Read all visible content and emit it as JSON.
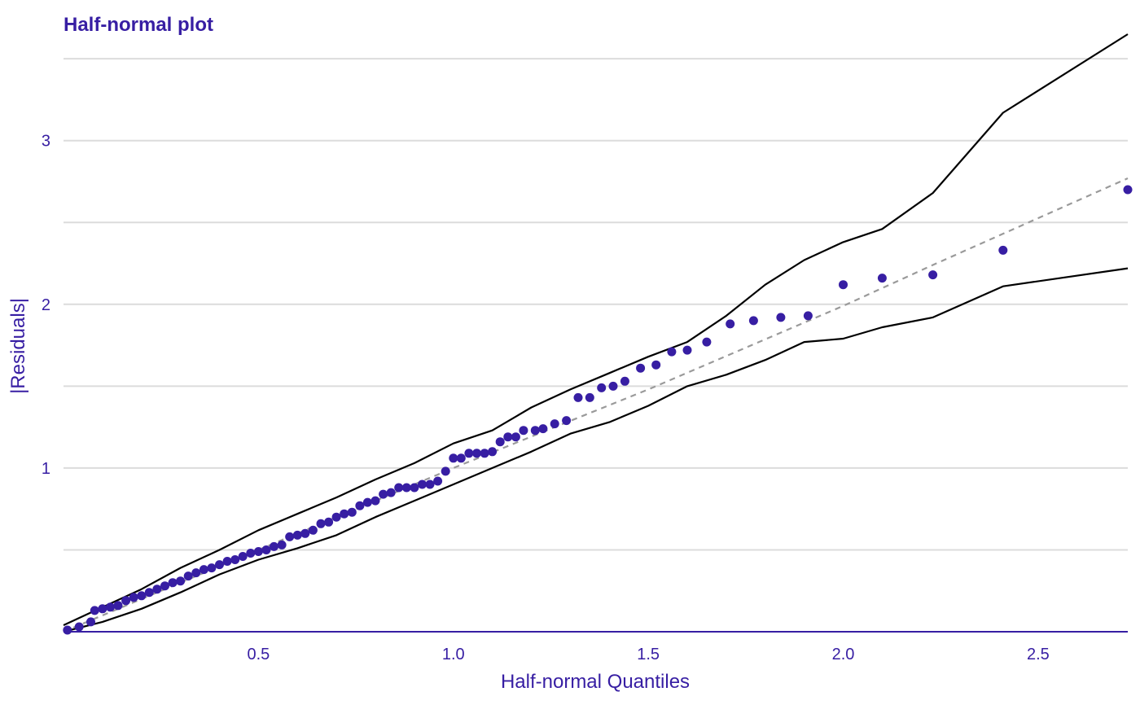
{
  "chart_data": {
    "type": "scatter",
    "title": "Half-normal plot",
    "xlabel": "Half-normal Quantiles",
    "ylabel": "|Residuals|",
    "xlim": [
      0.0,
      2.73
    ],
    "ylim": [
      0.0,
      3.65
    ],
    "x_ticks": [
      0.5,
      1.0,
      1.5,
      2.0,
      2.5
    ],
    "x_tick_labels": [
      "0.5",
      "1.0",
      "1.5",
      "2.0",
      "2.5"
    ],
    "y_ticks": [
      1,
      2,
      3
    ],
    "y_tick_labels": [
      "1",
      "2",
      "3"
    ],
    "y_gridlines": [
      0.5,
      1,
      1.5,
      2,
      2.5,
      3,
      3.5
    ],
    "grid": "horizontal",
    "colors": {
      "points": "#371ea3",
      "envelope": "#000000",
      "reference": "#9a9a9a",
      "text": "#371ea3",
      "grid": "#dcdcdc"
    },
    "points": [
      [
        0.01,
        0.01
      ],
      [
        0.04,
        0.03
      ],
      [
        0.07,
        0.06
      ],
      [
        0.08,
        0.13
      ],
      [
        0.1,
        0.14
      ],
      [
        0.12,
        0.15
      ],
      [
        0.14,
        0.16
      ],
      [
        0.16,
        0.19
      ],
      [
        0.18,
        0.21
      ],
      [
        0.2,
        0.22
      ],
      [
        0.22,
        0.24
      ],
      [
        0.24,
        0.26
      ],
      [
        0.26,
        0.28
      ],
      [
        0.28,
        0.3
      ],
      [
        0.3,
        0.31
      ],
      [
        0.32,
        0.34
      ],
      [
        0.34,
        0.36
      ],
      [
        0.36,
        0.38
      ],
      [
        0.38,
        0.39
      ],
      [
        0.4,
        0.41
      ],
      [
        0.42,
        0.43
      ],
      [
        0.44,
        0.44
      ],
      [
        0.46,
        0.46
      ],
      [
        0.48,
        0.48
      ],
      [
        0.5,
        0.49
      ],
      [
        0.52,
        0.5
      ],
      [
        0.54,
        0.52
      ],
      [
        0.56,
        0.53
      ],
      [
        0.58,
        0.58
      ],
      [
        0.6,
        0.59
      ],
      [
        0.62,
        0.6
      ],
      [
        0.64,
        0.62
      ],
      [
        0.66,
        0.66
      ],
      [
        0.68,
        0.67
      ],
      [
        0.7,
        0.7
      ],
      [
        0.72,
        0.72
      ],
      [
        0.74,
        0.73
      ],
      [
        0.76,
        0.77
      ],
      [
        0.78,
        0.79
      ],
      [
        0.8,
        0.8
      ],
      [
        0.82,
        0.84
      ],
      [
        0.84,
        0.85
      ],
      [
        0.86,
        0.88
      ],
      [
        0.88,
        0.88
      ],
      [
        0.9,
        0.88
      ],
      [
        0.92,
        0.9
      ],
      [
        0.94,
        0.9
      ],
      [
        0.96,
        0.92
      ],
      [
        0.98,
        0.98
      ],
      [
        1.0,
        1.06
      ],
      [
        1.02,
        1.06
      ],
      [
        1.04,
        1.09
      ],
      [
        1.06,
        1.09
      ],
      [
        1.08,
        1.09
      ],
      [
        1.1,
        1.1
      ],
      [
        1.12,
        1.16
      ],
      [
        1.14,
        1.19
      ],
      [
        1.16,
        1.19
      ],
      [
        1.18,
        1.23
      ],
      [
        1.21,
        1.23
      ],
      [
        1.23,
        1.24
      ],
      [
        1.26,
        1.27
      ],
      [
        1.29,
        1.29
      ],
      [
        1.32,
        1.43
      ],
      [
        1.35,
        1.43
      ],
      [
        1.38,
        1.49
      ],
      [
        1.41,
        1.5
      ],
      [
        1.44,
        1.53
      ],
      [
        1.48,
        1.61
      ],
      [
        1.52,
        1.63
      ],
      [
        1.56,
        1.71
      ],
      [
        1.6,
        1.72
      ],
      [
        1.65,
        1.77
      ],
      [
        1.71,
        1.88
      ],
      [
        1.77,
        1.9
      ],
      [
        1.84,
        1.92
      ],
      [
        1.91,
        1.93
      ],
      [
        2.0,
        2.12
      ],
      [
        2.1,
        2.16
      ],
      [
        2.23,
        2.18
      ],
      [
        2.41,
        2.33
      ],
      [
        2.73,
        2.7
      ]
    ],
    "envelope_upper": [
      [
        0.0,
        0.04
      ],
      [
        0.1,
        0.15
      ],
      [
        0.2,
        0.26
      ],
      [
        0.3,
        0.39
      ],
      [
        0.4,
        0.5
      ],
      [
        0.5,
        0.62
      ],
      [
        0.6,
        0.72
      ],
      [
        0.7,
        0.82
      ],
      [
        0.8,
        0.93
      ],
      [
        0.9,
        1.03
      ],
      [
        1.0,
        1.15
      ],
      [
        1.1,
        1.23
      ],
      [
        1.2,
        1.37
      ],
      [
        1.3,
        1.48
      ],
      [
        1.4,
        1.58
      ],
      [
        1.5,
        1.68
      ],
      [
        1.6,
        1.77
      ],
      [
        1.7,
        1.93
      ],
      [
        1.8,
        2.12
      ],
      [
        1.9,
        2.27
      ],
      [
        2.0,
        2.38
      ],
      [
        2.1,
        2.46
      ],
      [
        2.23,
        2.68
      ],
      [
        2.41,
        3.17
      ],
      [
        2.73,
        3.65
      ]
    ],
    "envelope_lower": [
      [
        0.0,
        0.0
      ],
      [
        0.1,
        0.06
      ],
      [
        0.2,
        0.14
      ],
      [
        0.3,
        0.24
      ],
      [
        0.4,
        0.35
      ],
      [
        0.5,
        0.44
      ],
      [
        0.6,
        0.51
      ],
      [
        0.7,
        0.59
      ],
      [
        0.8,
        0.7
      ],
      [
        0.9,
        0.8
      ],
      [
        1.0,
        0.9
      ],
      [
        1.1,
        1.0
      ],
      [
        1.2,
        1.1
      ],
      [
        1.3,
        1.21
      ],
      [
        1.4,
        1.28
      ],
      [
        1.5,
        1.38
      ],
      [
        1.6,
        1.5
      ],
      [
        1.7,
        1.57
      ],
      [
        1.8,
        1.66
      ],
      [
        1.9,
        1.77
      ],
      [
        2.0,
        1.79
      ],
      [
        2.1,
        1.86
      ],
      [
        2.23,
        1.92
      ],
      [
        2.41,
        2.11
      ],
      [
        2.73,
        2.22
      ]
    ],
    "reference_line": [
      [
        0.0,
        0.0
      ],
      [
        0.5,
        0.5
      ],
      [
        1.0,
        1.0
      ],
      [
        1.5,
        1.48
      ],
      [
        2.0,
        1.99
      ],
      [
        2.23,
        2.24
      ],
      [
        2.73,
        2.77
      ]
    ]
  }
}
